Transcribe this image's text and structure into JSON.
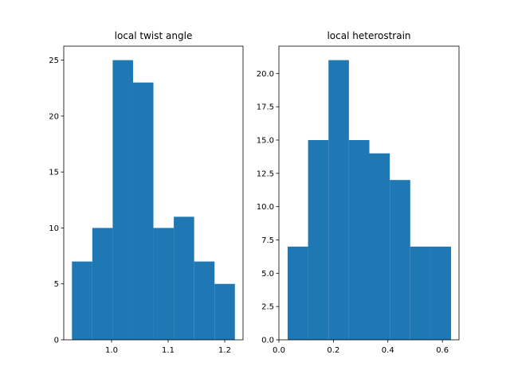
{
  "chart_data": [
    {
      "type": "histogram",
      "title": "local twist angle",
      "color": "#1f77b4",
      "bins": [
        0.93,
        0.966,
        1.002,
        1.038,
        1.074,
        1.11,
        1.146,
        1.182,
        1.218
      ],
      "counts": [
        7,
        10,
        25,
        23,
        10,
        11,
        7,
        5
      ],
      "xlim": [
        0.9155,
        1.2324
      ],
      "ylim": [
        0,
        26.25
      ],
      "xticks": [
        {
          "value": 1.0,
          "label": "1.0"
        },
        {
          "value": 1.1,
          "label": "1.1"
        },
        {
          "value": 1.2,
          "label": "1.2"
        }
      ],
      "yticks": [
        0,
        5,
        10,
        15,
        20,
        25
      ]
    },
    {
      "type": "histogram",
      "title": "local heterostrain",
      "color": "#1f77b4",
      "bins": [
        0.032,
        0.107,
        0.182,
        0.257,
        0.332,
        0.407,
        0.482,
        0.557,
        0.632
      ],
      "counts": [
        7,
        15,
        21,
        15,
        14,
        12,
        7,
        7
      ],
      "xlim": [
        0,
        0.661
      ],
      "ylim": [
        0,
        22.05
      ],
      "xticks": [
        {
          "value": 0,
          "label": "0.0"
        },
        {
          "value": 0.2,
          "label": "0.2"
        },
        {
          "value": 0.4,
          "label": "0.4"
        },
        {
          "value": 0.6,
          "label": "0.6"
        }
      ],
      "yticks": [
        {
          "value": 0,
          "label": "0.0"
        },
        {
          "value": 2.5,
          "label": "2.5"
        },
        {
          "value": 5,
          "label": "5.0"
        },
        {
          "value": 7.5,
          "label": "7.5"
        },
        {
          "value": 10,
          "label": "10.0"
        },
        {
          "value": 12.5,
          "label": "12.5"
        },
        {
          "value": 15,
          "label": "15.0"
        },
        {
          "value": 17.5,
          "label": "17.5"
        },
        {
          "value": 20,
          "label": "20.0"
        }
      ]
    }
  ]
}
